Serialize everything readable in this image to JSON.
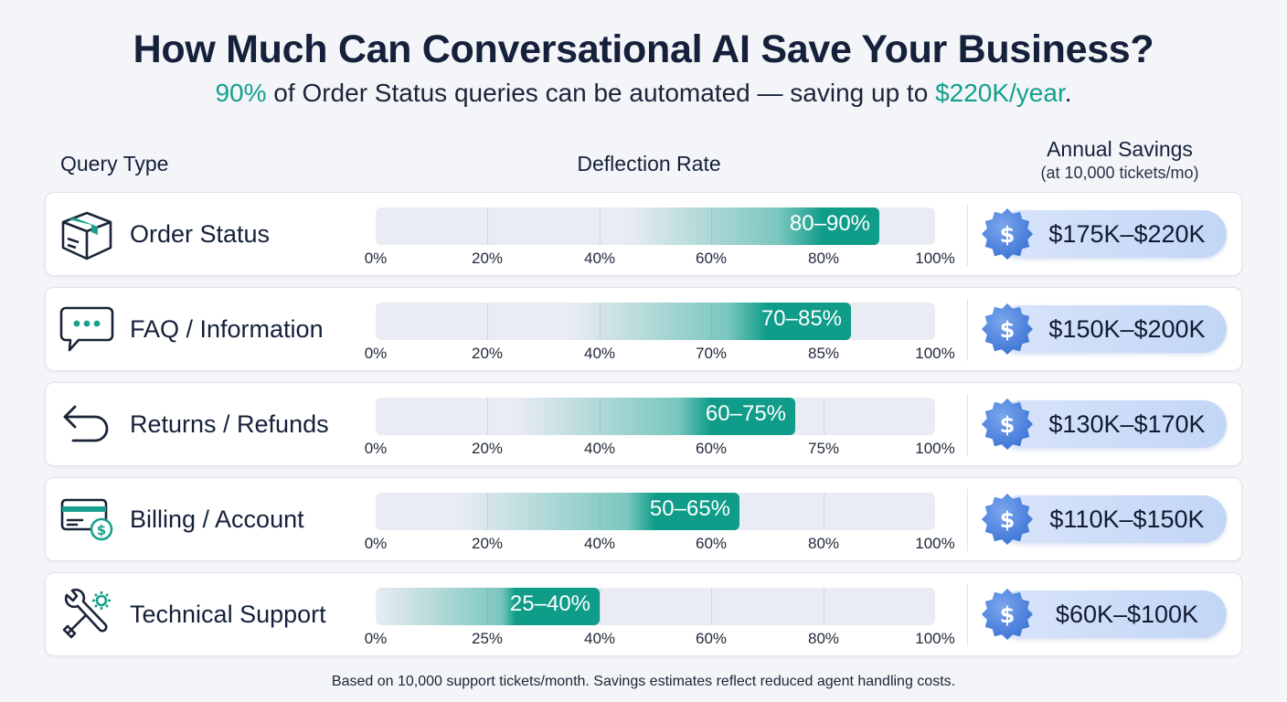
{
  "title": "How Much Can Conversational AI Save Your Business?",
  "subtitle": {
    "pct": "90%",
    "mid": " of Order Status queries can be automated — saving up to ",
    "amount": "$220K/year",
    "end": "."
  },
  "headers": {
    "query_type": "Query Type",
    "deflection_rate": "Deflection Rate",
    "annual_savings": "Annual Savings",
    "annual_savings_sub": "(at 10,000 tickets/mo)"
  },
  "footnote": "Based on 10,000 support tickets/month. Savings estimates reflect reduced agent handling costs.",
  "colors": {
    "accent": "#15a08d",
    "fill_end": "#0f9c88",
    "badge": "#4f86de",
    "pill": "#c9dbf7"
  },
  "chart_data": {
    "type": "bar",
    "title": "How Much Can Conversational AI Save Your Business?",
    "xlabel": "Deflection Rate",
    "ylabel": "Query Type",
    "grid": true,
    "rows": [
      {
        "label": "Order Status",
        "icon": "package-icon",
        "range_label": "80–90%",
        "low": 80,
        "high": 90,
        "ticks": [
          "0%",
          "20%",
          "40%",
          "60%",
          "80%",
          "100%"
        ],
        "savings": "$175K–$220K"
      },
      {
        "label": "FAQ / Information",
        "icon": "chat-bubble-icon",
        "range_label": "70–85%",
        "low": 70,
        "high": 85,
        "ticks": [
          "0%",
          "20%",
          "40%",
          "70%",
          "85%",
          "100%"
        ],
        "savings": "$150K–$200K"
      },
      {
        "label": "Returns / Refunds",
        "icon": "return-arrow-icon",
        "range_label": "60–75%",
        "low": 60,
        "high": 75,
        "ticks": [
          "0%",
          "20%",
          "40%",
          "60%",
          "75%",
          "100%"
        ],
        "savings": "$130K–$170K"
      },
      {
        "label": "Billing / Account",
        "icon": "credit-card-icon",
        "range_label": "50–65%",
        "low": 50,
        "high": 65,
        "ticks": [
          "0%",
          "20%",
          "40%",
          "60%",
          "80%",
          "100%"
        ],
        "savings": "$110K–$150K"
      },
      {
        "label": "Technical Support",
        "icon": "tools-icon",
        "range_label": "25–40%",
        "low": 25,
        "high": 40,
        "ticks": [
          "0%",
          "25%",
          "40%",
          "60%",
          "80%",
          "100%"
        ],
        "savings": "$60K–$100K"
      }
    ]
  }
}
